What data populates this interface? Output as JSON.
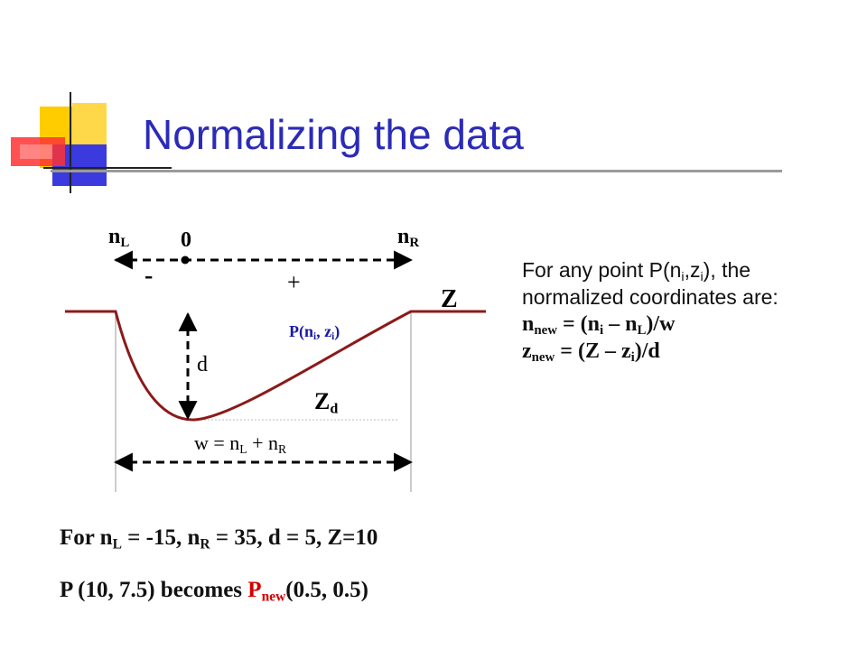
{
  "slide": {
    "title": "Normalizing the data"
  },
  "diagram": {
    "label_nL_base": "n",
    "label_nL_sub": "L",
    "label_zero": "0",
    "label_nR_base": "n",
    "label_nR_sub": "R",
    "label_minus": "-",
    "label_plus": "+",
    "label_Z": "Z",
    "label_point_prefix": "P(n",
    "label_point_sub1": "i",
    "label_point_mid": ", z",
    "label_point_sub2": "i",
    "label_point_suffix": ")",
    "label_d": "d",
    "label_Zd_base": "Z",
    "label_Zd_sub": "d",
    "label_width_prefix": "w = n",
    "label_width_sub1": "L",
    "label_width_mid": " + n",
    "label_width_sub2": "R"
  },
  "info": {
    "intro_prefix": "For any point P(n",
    "intro_sub1": "i",
    "intro_comma": ",z",
    "intro_sub2": "i",
    "intro_suffix": "), the normalized coordinates are:",
    "n_formula_base": "n",
    "n_formula_sub": "new",
    "n_formula_rest1": " = (n",
    "n_formula_sub2": "i",
    "n_formula_rest2": " – n",
    "n_formula_sub3": "L",
    "n_formula_rest3": ")/w",
    "z_formula_base": "z",
    "z_formula_sub": "new",
    "z_formula_rest1": " = (Z – z",
    "z_formula_sub2": "i",
    "z_formula_rest2": ")/d"
  },
  "example": {
    "line1_p1": "For n",
    "line1_s1": "L",
    "line1_p2": " = -15, n",
    "line1_s2": "R",
    "line1_p3": " = 35, d = 5, Z=10",
    "line2_p1": "P (10, 7.5) becomes ",
    "line2_red": "P",
    "line2_red_sub": "new",
    "line2_p2": "(0.5, 0.5)"
  },
  "colors": {
    "title": "#2b2bb8",
    "curve": "#8b1a1a",
    "point_label": "#1a1aa6",
    "highlight": "#d40000"
  }
}
